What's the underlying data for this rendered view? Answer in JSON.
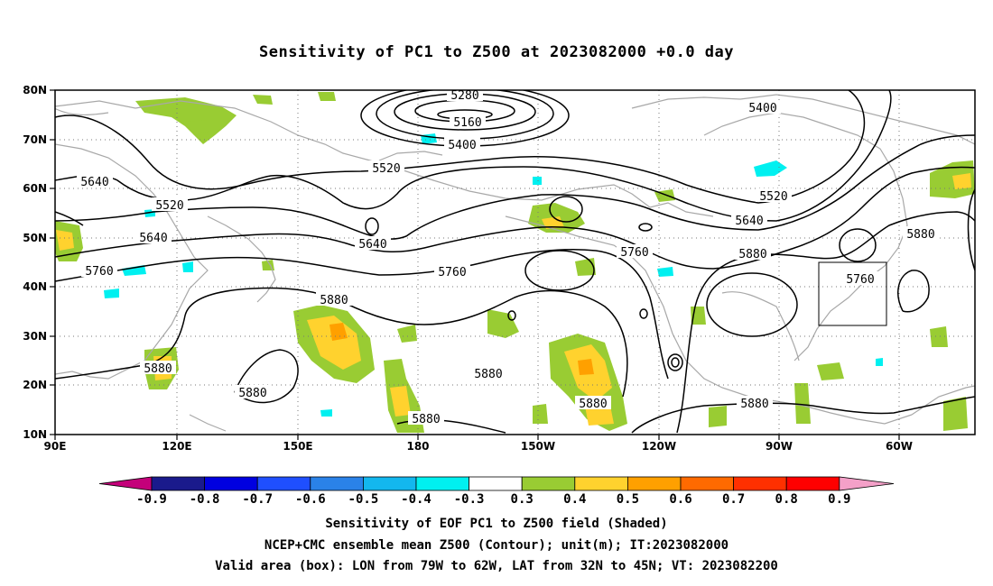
{
  "title": "Sensitivity of PC1 to Z500 at 2023082000 +0.0 day",
  "lat_labels": [
    "80N",
    "70N",
    "60N",
    "50N",
    "40N",
    "30N",
    "20N",
    "10N"
  ],
  "lon_labels": [
    "90E",
    "120E",
    "150E",
    "180",
    "150W",
    "120W",
    "90W",
    "60W"
  ],
  "contour_labels": [
    {
      "text": "5280"
    },
    {
      "text": "5160"
    },
    {
      "text": "5400"
    },
    {
      "text": "5520"
    },
    {
      "text": "5400"
    },
    {
      "text": "5640"
    },
    {
      "text": "5520"
    },
    {
      "text": "5640"
    },
    {
      "text": "5520"
    },
    {
      "text": "5640"
    },
    {
      "text": "5640"
    },
    {
      "text": "5760"
    },
    {
      "text": "5760"
    },
    {
      "text": "5760"
    },
    {
      "text": "5880"
    },
    {
      "text": "5880"
    },
    {
      "text": "5760"
    },
    {
      "text": "5880"
    },
    {
      "text": "5880"
    },
    {
      "text": "5880"
    },
    {
      "text": "5880"
    },
    {
      "text": "5880"
    },
    {
      "text": "5880"
    },
    {
      "text": "5880"
    }
  ],
  "colorbar": {
    "labels": [
      "-0.9",
      "-0.8",
      "-0.7",
      "-0.6",
      "-0.5",
      "-0.4",
      "-0.3",
      "0.3",
      "0.4",
      "0.5",
      "0.6",
      "0.7",
      "0.8",
      "0.9"
    ],
    "colors": [
      "#1a1a8c",
      "#0000e0",
      "#1f4fff",
      "#2a82e8",
      "#13b7ee",
      "#00f0f0",
      "#ffffff",
      "#99cc33",
      "#ffd22e",
      "#ffa000",
      "#ff6a00",
      "#ff3000",
      "#ff0000"
    ],
    "low_end_color": "#c4007a",
    "high_end_color": "#f4a0c8"
  },
  "footer": {
    "line1": "Sensitivity of EOF PC1 to Z500 field (Shaded)",
    "line2": "NCEP+CMC ensemble mean Z500 (Contour); unit(m); IT:2023082000",
    "line3": "Valid area (box): LON from 79W to 62W, LAT from 32N to 45N; VT: 2023082200"
  },
  "validation_box": {
    "lon_from": "79W",
    "lon_to": "62W",
    "lat_from": "32N",
    "lat_to": "45N"
  }
}
